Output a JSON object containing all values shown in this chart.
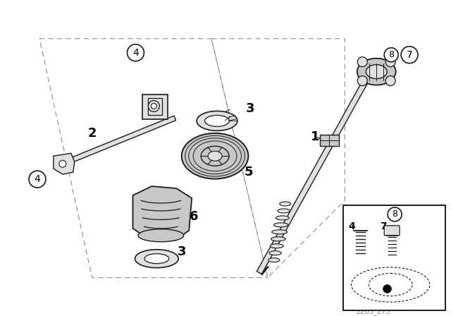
{
  "bg_color": "#ffffff",
  "line_color": "#1a1a1a",
  "dash_color": "#999999",
  "gray_fill": "#c8c8c8",
  "light_gray": "#e0e0e0",
  "fig_width": 6.4,
  "fig_height": 4.48,
  "watermark": "2205_273",
  "dpi": 100
}
